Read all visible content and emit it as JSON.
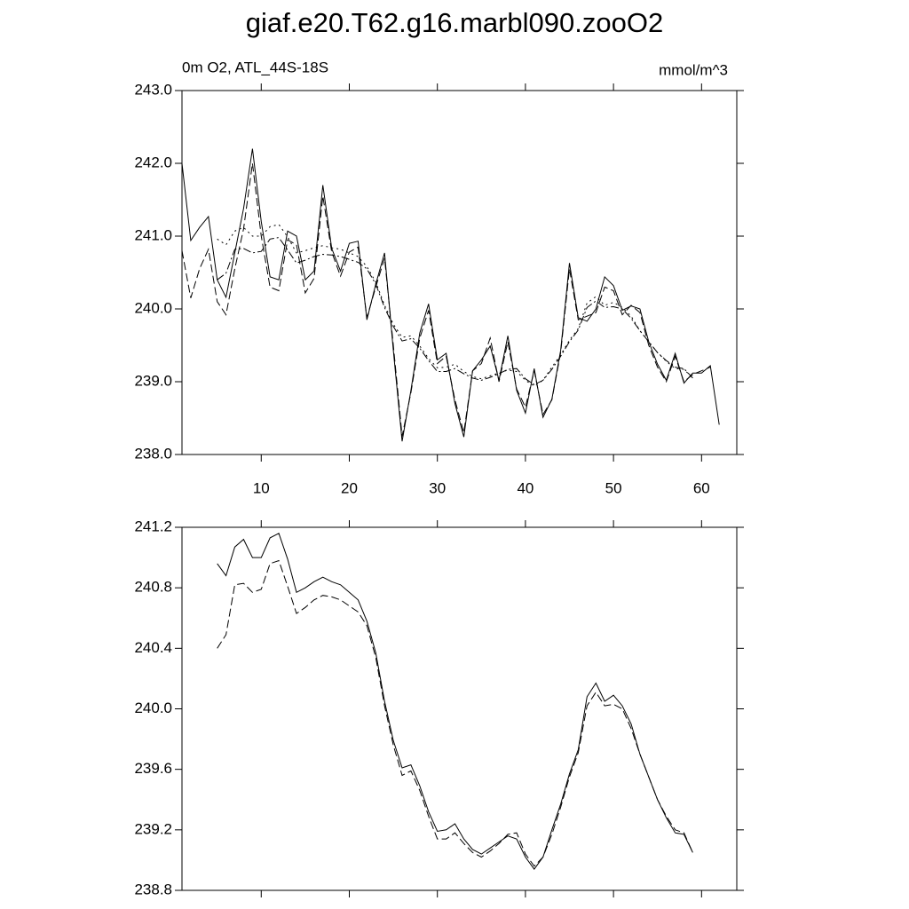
{
  "chart_data": [
    {
      "type": "line",
      "title": "giaf.e20.T62.g16.marbl090.zooO2",
      "subtitle": "0m O2, ATL_44S-18S",
      "units": "mmol/m^3",
      "x": [
        1,
        2,
        3,
        4,
        5,
        6,
        7,
        8,
        9,
        10,
        11,
        12,
        13,
        14,
        15,
        16,
        17,
        18,
        19,
        20,
        21,
        22,
        23,
        24,
        25,
        26,
        27,
        28,
        29,
        30,
        31,
        32,
        33,
        34,
        35,
        36,
        37,
        38,
        39,
        40,
        41,
        42,
        43,
        44,
        45,
        46,
        47,
        48,
        49,
        50,
        51,
        52,
        53,
        54,
        55,
        56,
        57,
        58,
        59,
        60,
        61,
        62
      ],
      "xlim": [
        1,
        64
      ],
      "xticks": [
        10,
        20,
        30,
        40,
        50,
        60
      ],
      "ylim": [
        238,
        243
      ],
      "yticks": [
        {
          "value": 238,
          "label": "238.0"
        },
        {
          "value": 239,
          "label": "239.0"
        },
        {
          "value": 240,
          "label": "240.0"
        },
        {
          "value": 241,
          "label": "241.0"
        },
        {
          "value": 242,
          "label": "242.0"
        },
        {
          "value": 243,
          "label": "243.0"
        }
      ],
      "series": [
        {
          "color": "#000000",
          "dash": "solid",
          "values": [
            242.0,
            240.94,
            241.12,
            241.27,
            240.4,
            240.16,
            240.77,
            241.38,
            242.2,
            241.2,
            240.44,
            240.4,
            241.07,
            241.0,
            240.4,
            240.52,
            241.7,
            240.83,
            240.52,
            240.9,
            240.93,
            239.85,
            240.34,
            240.77,
            239.43,
            238.18,
            238.88,
            239.67,
            240.07,
            239.3,
            239.39,
            238.7,
            238.24,
            239.15,
            239.3,
            239.49,
            239.02,
            239.63,
            238.88,
            238.57,
            239.18,
            238.51,
            238.76,
            239.43,
            240.63,
            239.88,
            239.83,
            240.0,
            240.44,
            240.32,
            239.98,
            240.04,
            240.0,
            239.55,
            239.24,
            239.02,
            239.39,
            238.98,
            239.12,
            239.12,
            239.22,
            238.41
          ]
        },
        {
          "color": "#000000",
          "dash": "dashed",
          "values": [
            240.8,
            240.15,
            240.55,
            240.82,
            240.1,
            239.92,
            240.55,
            241.1,
            242.0,
            241.0,
            240.3,
            240.25,
            240.95,
            240.88,
            240.22,
            240.42,
            241.55,
            240.78,
            240.45,
            240.78,
            240.85,
            239.88,
            240.3,
            240.7,
            239.5,
            238.25,
            238.85,
            239.6,
            239.98,
            239.25,
            239.35,
            238.75,
            238.3,
            239.15,
            239.25,
            239.6,
            239.0,
            239.55,
            238.9,
            238.65,
            239.15,
            238.55,
            238.75,
            239.4,
            240.55,
            239.85,
            239.9,
            239.95,
            240.3,
            240.25,
            239.92,
            240.05,
            239.95,
            239.5,
            239.2,
            239.0,
            239.35,
            239.0,
            239.1,
            239.15,
            239.2,
            null
          ]
        },
        {
          "color": "#000000",
          "dash": "dotted",
          "values": [
            null,
            null,
            null,
            null,
            240.96,
            240.88,
            241.07,
            241.12,
            241.0,
            241.0,
            241.13,
            241.16,
            240.99,
            240.77,
            240.8,
            240.84,
            240.87,
            240.84,
            240.82,
            240.77,
            240.72,
            240.58,
            240.37,
            240.05,
            239.79,
            239.61,
            239.63,
            239.49,
            239.32,
            239.19,
            239.2,
            239.24,
            239.14,
            239.07,
            239.04,
            239.08,
            239.12,
            239.16,
            239.14,
            239.02,
            238.94,
            239.02,
            239.2,
            239.37,
            239.57,
            239.73,
            240.08,
            240.17,
            240.05,
            240.09,
            240.02,
            239.9,
            239.7,
            239.55,
            239.4,
            239.28,
            239.18,
            239.17,
            239.05,
            null,
            null,
            null
          ]
        },
        {
          "color": "#000000",
          "dash": "dashdot",
          "values": [
            null,
            null,
            null,
            null,
            240.4,
            240.49,
            240.82,
            240.83,
            240.77,
            240.79,
            240.96,
            240.98,
            240.81,
            240.63,
            240.67,
            240.72,
            240.75,
            240.74,
            240.72,
            240.68,
            240.64,
            240.55,
            240.34,
            240.02,
            239.76,
            239.56,
            239.59,
            239.46,
            239.29,
            239.14,
            239.14,
            239.18,
            239.11,
            239.05,
            239.02,
            239.06,
            239.11,
            239.17,
            239.18,
            239.04,
            238.96,
            239.02,
            239.17,
            239.35,
            239.55,
            239.71,
            240.02,
            240.11,
            240.02,
            240.03,
            240.0,
            239.87,
            239.7,
            239.55,
            239.4,
            239.29,
            239.2,
            239.18,
            239.05,
            null,
            null,
            null
          ]
        }
      ]
    },
    {
      "type": "line",
      "x": [
        5,
        6,
        7,
        8,
        9,
        10,
        11,
        12,
        13,
        14,
        15,
        16,
        17,
        18,
        19,
        20,
        21,
        22,
        23,
        24,
        25,
        26,
        27,
        28,
        29,
        30,
        31,
        32,
        33,
        34,
        35,
        36,
        37,
        38,
        39,
        40,
        41,
        42,
        43,
        44,
        45,
        46,
        47,
        48,
        49,
        50,
        51,
        52,
        53,
        54,
        55,
        56,
        57,
        58,
        59
      ],
      "xlim": [
        1,
        64
      ],
      "xticks": [
        10,
        20,
        30,
        40,
        50,
        60
      ],
      "ylim": [
        238.8,
        241.2
      ],
      "yticks": [
        238.8,
        239.2,
        239.6,
        {
          "value": 240,
          "label": "240.0"
        },
        240.4,
        240.8,
        241.2
      ],
      "series": [
        {
          "color": "#000000",
          "dash": "solid",
          "values": [
            240.96,
            240.88,
            241.07,
            241.12,
            241.0,
            241.0,
            241.13,
            241.16,
            240.99,
            240.77,
            240.8,
            240.84,
            240.87,
            240.84,
            240.82,
            240.77,
            240.72,
            240.58,
            240.37,
            240.05,
            239.79,
            239.61,
            239.63,
            239.49,
            239.32,
            239.19,
            239.2,
            239.24,
            239.14,
            239.07,
            239.04,
            239.08,
            239.12,
            239.16,
            239.14,
            239.02,
            238.94,
            239.02,
            239.2,
            239.37,
            239.57,
            239.73,
            240.08,
            240.17,
            240.05,
            240.09,
            240.02,
            239.9,
            239.7,
            239.55,
            239.4,
            239.28,
            239.18,
            239.17,
            239.05
          ]
        },
        {
          "color": "#000000",
          "dash": "dashed",
          "values": [
            240.4,
            240.49,
            240.82,
            240.83,
            240.77,
            240.79,
            240.96,
            240.98,
            240.81,
            240.63,
            240.67,
            240.72,
            240.75,
            240.74,
            240.72,
            240.68,
            240.64,
            240.55,
            240.34,
            240.02,
            239.76,
            239.56,
            239.59,
            239.46,
            239.29,
            239.14,
            239.14,
            239.18,
            239.11,
            239.05,
            239.02,
            239.06,
            239.11,
            239.17,
            239.18,
            239.04,
            238.96,
            239.02,
            239.17,
            239.35,
            239.55,
            239.71,
            240.02,
            240.11,
            240.02,
            240.03,
            240.0,
            239.87,
            239.7,
            239.55,
            239.4,
            239.29,
            239.2,
            239.18,
            239.05
          ]
        }
      ]
    }
  ]
}
